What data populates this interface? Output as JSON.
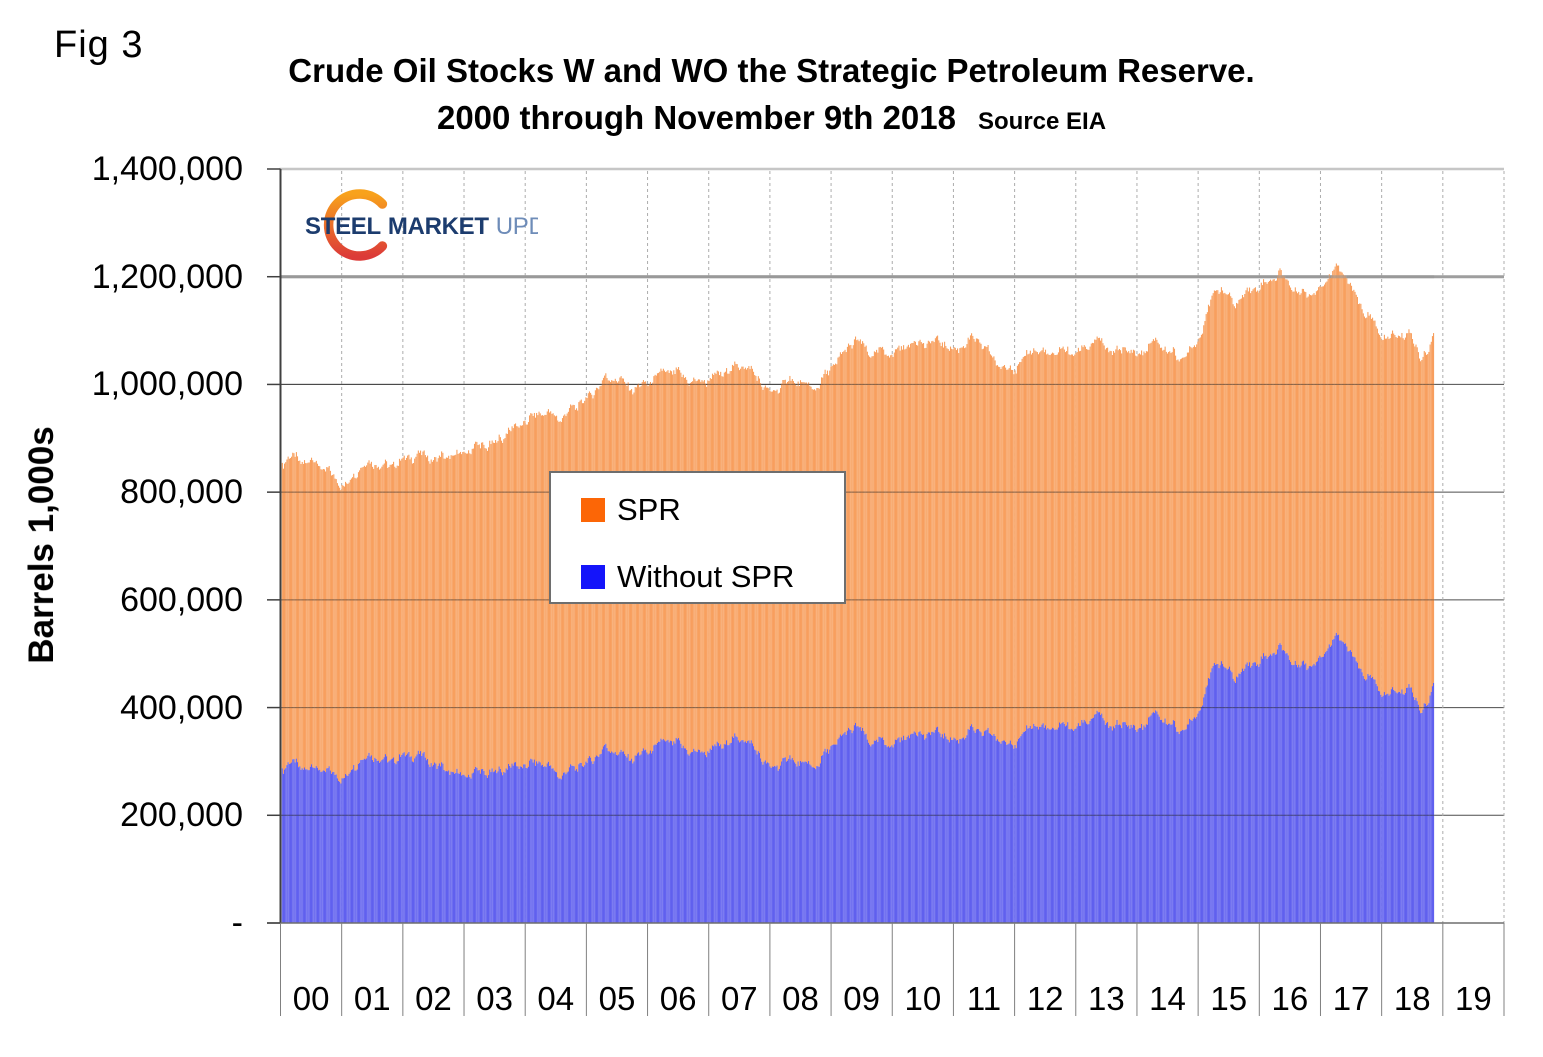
{
  "header": {
    "fig_label": "Fig 3",
    "title_line1": "Crude Oil Stocks W and WO the Strategic Petroleum Reserve.",
    "title_line2": "2000 through November 9th 2018",
    "source": "Source EIA"
  },
  "logo": {
    "word1": "STEEL",
    "word2": "MARKET",
    "word3": "UPDATE",
    "word_color_dark": "#1C3C6E",
    "word_color_light": "#6E8CB8",
    "crescent_top_color": "#F8A21C",
    "crescent_bottom_color": "#DC3B38"
  },
  "y_axis": {
    "title": "Barrels 1,000s",
    "ticks": [
      {
        "label": "-",
        "value": 0
      },
      {
        "label": "200,000",
        "value": 200000
      },
      {
        "label": "400,000",
        "value": 400000
      },
      {
        "label": "600,000",
        "value": 600000
      },
      {
        "label": "800,000",
        "value": 800000
      },
      {
        "label": "1,000,000",
        "value": 1000000
      },
      {
        "label": "1,200,000",
        "value": 1200000
      },
      {
        "label": "1,400,000",
        "value": 1400000
      }
    ]
  },
  "x_axis": {
    "tick_labels": [
      "00",
      "01",
      "02",
      "03",
      "04",
      "05",
      "06",
      "07",
      "08",
      "09",
      "10",
      "11",
      "12",
      "13",
      "14",
      "15",
      "16",
      "17",
      "18",
      "19"
    ]
  },
  "legend": {
    "items": [
      {
        "label": "SPR",
        "color": "#FC6606"
      },
      {
        "label": "Without SPR",
        "color": "#1414FA"
      }
    ]
  },
  "chart_data": {
    "type": "bar",
    "stacked": true,
    "bar_frequency": "weekly",
    "x_start": 2000.0,
    "x_end": 2018.86,
    "xlim": [
      2000,
      2020
    ],
    "ylim": [
      0,
      1400000
    ],
    "y_unit": "thousand barrels",
    "grid": "on",
    "legend_position": "center-left box",
    "style": {
      "grid_color": "#4d4d4d",
      "grid_major_color": "#9e9e9e",
      "year_line_color": "#ACACAC",
      "axis_color": "#404040",
      "sep_color": "#808080"
    },
    "series": [
      {
        "name": "Without SPR",
        "bar_color": "#3737EC",
        "bar_gap_color": "#9B9BF2",
        "anchors": [
          [
            2000.0,
            284000
          ],
          [
            2000.15,
            299000
          ],
          [
            2000.4,
            287000
          ],
          [
            2000.6,
            288000
          ],
          [
            2000.8,
            280000
          ],
          [
            2001.05,
            267000
          ],
          [
            2001.3,
            303000
          ],
          [
            2001.5,
            310000
          ],
          [
            2001.75,
            300000
          ],
          [
            2002.0,
            310000
          ],
          [
            2002.3,
            312000
          ],
          [
            2002.5,
            295000
          ],
          [
            2002.75,
            282000
          ],
          [
            2003.0,
            272000
          ],
          [
            2003.2,
            282000
          ],
          [
            2003.5,
            278000
          ],
          [
            2003.75,
            291000
          ],
          [
            2004.0,
            292000
          ],
          [
            2004.25,
            300000
          ],
          [
            2004.6,
            272000
          ],
          [
            2004.8,
            290000
          ],
          [
            2005.0,
            295000
          ],
          [
            2005.3,
            324000
          ],
          [
            2005.5,
            318000
          ],
          [
            2005.7,
            305000
          ],
          [
            2006.0,
            318000
          ],
          [
            2006.3,
            340000
          ],
          [
            2006.5,
            333000
          ],
          [
            2006.75,
            315000
          ],
          [
            2007.0,
            320000
          ],
          [
            2007.3,
            335000
          ],
          [
            2007.55,
            345000
          ],
          [
            2007.8,
            318000
          ],
          [
            2008.0,
            285000
          ],
          [
            2008.3,
            305000
          ],
          [
            2008.55,
            295000
          ],
          [
            2008.75,
            290000
          ],
          [
            2009.0,
            327000
          ],
          [
            2009.4,
            368000
          ],
          [
            2009.65,
            335000
          ],
          [
            2009.85,
            337000
          ],
          [
            2010.0,
            330000
          ],
          [
            2010.3,
            352000
          ],
          [
            2010.55,
            350000
          ],
          [
            2010.8,
            355000
          ],
          [
            2011.0,
            335000
          ],
          [
            2011.3,
            358000
          ],
          [
            2011.55,
            354000
          ],
          [
            2011.8,
            337000
          ],
          [
            2012.0,
            331000
          ],
          [
            2012.3,
            370000
          ],
          [
            2012.55,
            358000
          ],
          [
            2012.8,
            368000
          ],
          [
            2013.0,
            361000
          ],
          [
            2013.35,
            388000
          ],
          [
            2013.6,
            362000
          ],
          [
            2013.85,
            372000
          ],
          [
            2014.0,
            355000
          ],
          [
            2014.3,
            390000
          ],
          [
            2014.55,
            368000
          ],
          [
            2014.75,
            356000
          ],
          [
            2015.0,
            390000
          ],
          [
            2015.3,
            490000
          ],
          [
            2015.6,
            455000
          ],
          [
            2015.85,
            482000
          ],
          [
            2016.0,
            485000
          ],
          [
            2016.35,
            512000
          ],
          [
            2016.6,
            478000
          ],
          [
            2016.85,
            480000
          ],
          [
            2017.0,
            490000
          ],
          [
            2017.25,
            535000
          ],
          [
            2017.45,
            513000
          ],
          [
            2017.65,
            466000
          ],
          [
            2017.85,
            453000
          ],
          [
            2018.0,
            424000
          ],
          [
            2018.25,
            428000
          ],
          [
            2018.45,
            436000
          ],
          [
            2018.65,
            398000
          ],
          [
            2018.75,
            404000
          ],
          [
            2018.86,
            442000
          ]
        ]
      },
      {
        "name": "SPR",
        "bar_color": "#F5822F",
        "bar_gap_color": "#FBC9A2",
        "anchors": [
          [
            2000.0,
            567000
          ],
          [
            2000.5,
            570000
          ],
          [
            2000.8,
            556000
          ],
          [
            2001.05,
            541000
          ],
          [
            2001.5,
            544000
          ],
          [
            2002.0,
            550000
          ],
          [
            2002.5,
            565000
          ],
          [
            2002.75,
            585000
          ],
          [
            2003.0,
            599000
          ],
          [
            2003.5,
            611000
          ],
          [
            2004.0,
            638000
          ],
          [
            2004.5,
            660000
          ],
          [
            2005.0,
            676000
          ],
          [
            2005.55,
            695000
          ],
          [
            2005.75,
            685000
          ],
          [
            2006.0,
            684000
          ],
          [
            2006.5,
            688000
          ],
          [
            2007.0,
            689000
          ],
          [
            2007.5,
            692000
          ],
          [
            2008.0,
            697000
          ],
          [
            2008.5,
            706000
          ],
          [
            2008.8,
            701000
          ],
          [
            2009.0,
            704000
          ],
          [
            2009.5,
            719000
          ],
          [
            2010.0,
            726000
          ],
          [
            2010.5,
            726000
          ],
          [
            2011.0,
            726000
          ],
          [
            2011.4,
            726000
          ],
          [
            2011.7,
            696000
          ],
          [
            2012.0,
            696000
          ],
          [
            2013.0,
            696000
          ],
          [
            2014.0,
            696000
          ],
          [
            2014.3,
            691000
          ],
          [
            2015.0,
            691000
          ],
          [
            2015.5,
            695000
          ],
          [
            2016.0,
            695000
          ],
          [
            2016.5,
            695000
          ],
          [
            2017.0,
            687000
          ],
          [
            2017.3,
            685000
          ],
          [
            2017.6,
            679000
          ],
          [
            2017.9,
            665000
          ],
          [
            2018.0,
            662000
          ],
          [
            2018.4,
            660000
          ],
          [
            2018.6,
            655000
          ],
          [
            2018.86,
            650000
          ]
        ]
      }
    ]
  }
}
